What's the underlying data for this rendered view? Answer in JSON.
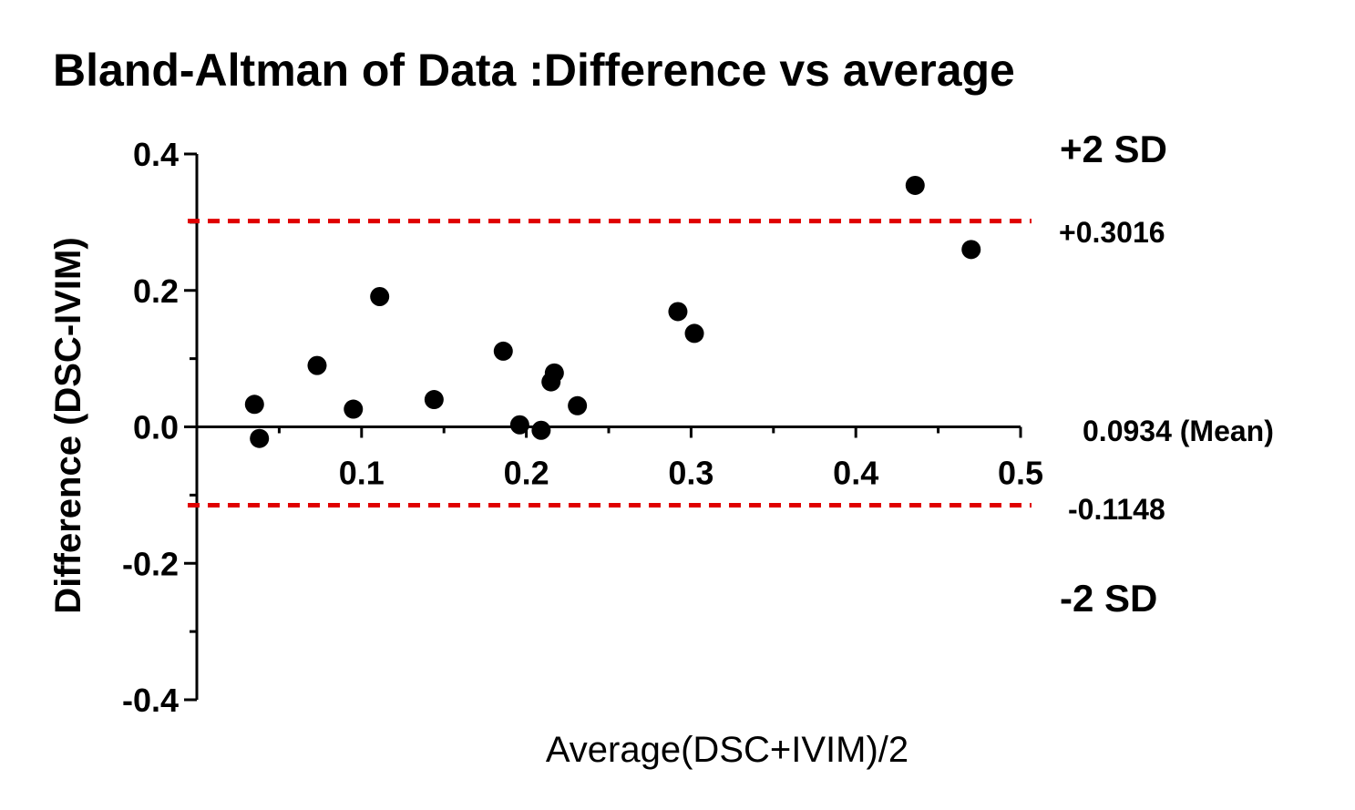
{
  "chart_data": {
    "type": "scatter",
    "title": "Bland-Altman of Data :Difference vs average",
    "xlabel": "Average(DSC+IVIM)/2",
    "ylabel": "Difference (DSC-IVIM)",
    "xlim": [
      0.0,
      0.5
    ],
    "ylim": [
      -0.4,
      0.4
    ],
    "xticks": [
      0.1,
      0.2,
      0.3,
      0.4,
      0.5
    ],
    "xtick_labels": [
      "0.1",
      "0.2",
      "0.3",
      "0.4",
      "0.5"
    ],
    "yticks": [
      -0.4,
      -0.2,
      0.0,
      0.2,
      0.4
    ],
    "ytick_labels": [
      "-0.4",
      "-0.2",
      "0.0",
      "0.2",
      "0.4"
    ],
    "points": [
      {
        "x": 0.035,
        "y": 0.033
      },
      {
        "x": 0.038,
        "y": -0.017
      },
      {
        "x": 0.073,
        "y": 0.09
      },
      {
        "x": 0.095,
        "y": 0.026
      },
      {
        "x": 0.111,
        "y": 0.191
      },
      {
        "x": 0.144,
        "y": 0.04
      },
      {
        "x": 0.186,
        "y": 0.111
      },
      {
        "x": 0.196,
        "y": 0.003
      },
      {
        "x": 0.209,
        "y": -0.005
      },
      {
        "x": 0.215,
        "y": 0.066
      },
      {
        "x": 0.217,
        "y": 0.079
      },
      {
        "x": 0.231,
        "y": 0.031
      },
      {
        "x": 0.292,
        "y": 0.169
      },
      {
        "x": 0.302,
        "y": 0.137
      },
      {
        "x": 0.436,
        "y": 0.354
      },
      {
        "x": 0.47,
        "y": 0.26
      }
    ],
    "reference_lines": [
      {
        "name": "upper-limit",
        "y": 0.3016,
        "color": "#e00000",
        "style": "dashed"
      },
      {
        "name": "lower-limit",
        "y": -0.1148,
        "color": "#e00000",
        "style": "dashed"
      }
    ],
    "annotations": {
      "upper_sd": "+2 SD",
      "upper_value": "+0.3016",
      "mean": "0.0934 (Mean)",
      "lower_value": "-0.1148",
      "lower_sd": "-2 SD"
    },
    "colors": {
      "points": "#000000",
      "limits": "#e00000",
      "axes": "#000000"
    }
  }
}
